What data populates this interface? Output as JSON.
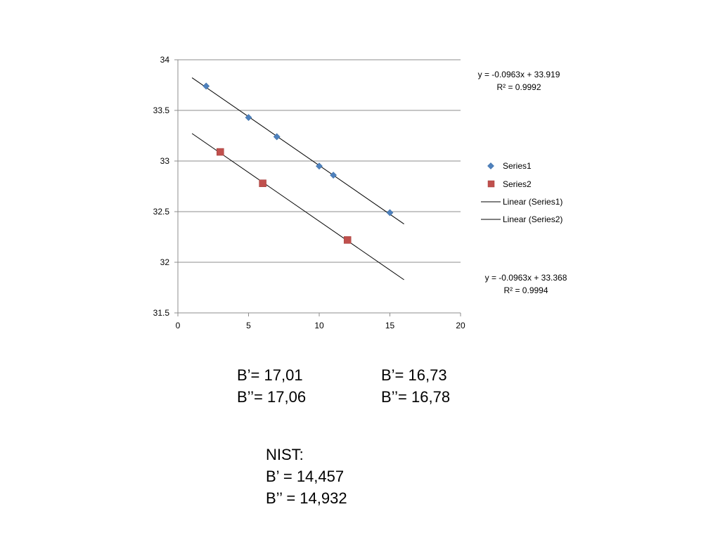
{
  "chart_data": {
    "type": "scatter",
    "title": "",
    "xlabel": "",
    "ylabel": "",
    "xlim": [
      0,
      20
    ],
    "ylim": [
      31.5,
      34
    ],
    "x_ticks": [
      "0",
      "5",
      "10",
      "15",
      "20"
    ],
    "y_ticks": [
      "31.5",
      "32",
      "32.5",
      "33",
      "33.5",
      "34"
    ],
    "grid": "horizontal",
    "legend_position": "right",
    "series": [
      {
        "name": "Series1",
        "marker": "diamond",
        "color": "#4f81bd",
        "points": [
          [
            2,
            33.74
          ],
          [
            5,
            33.43
          ],
          [
            7,
            33.24
          ],
          [
            10,
            32.95
          ],
          [
            11,
            32.86
          ],
          [
            15,
            32.49
          ]
        ],
        "trendline": {
          "name": "Linear (Series1)",
          "slope": -0.0963,
          "intercept": 33.919,
          "x_range": [
            1,
            16
          ]
        }
      },
      {
        "name": "Series2",
        "marker": "square",
        "color": "#c0504d",
        "points": [
          [
            3,
            33.09
          ],
          [
            6,
            32.78
          ],
          [
            12,
            32.22
          ]
        ],
        "trendline": {
          "name": "Linear (Series2)",
          "slope": -0.0963,
          "intercept": 33.368,
          "x_range": [
            1,
            16
          ]
        }
      }
    ],
    "equations": [
      {
        "equation": "y = -0.0963x + 33.919",
        "r2": "R² = 0.9992"
      },
      {
        "equation": "y = -0.0963x + 33.368",
        "r2": "R² = 0.9994"
      }
    ],
    "legend_entries": [
      "Series1",
      "Series2",
      "Linear (Series1)",
      "Linear (Series2)"
    ]
  },
  "results": {
    "col1": {
      "b1": "B’= 17,01",
      "b2": "B’’= 17,06"
    },
    "col2": {
      "b1": "B’= 16,73",
      "b2": "B’’= 16,78"
    },
    "nist": {
      "label": "NIST:",
      "b1": "B’ = 14,457",
      "b2": "B’’ = 14,932"
    }
  }
}
